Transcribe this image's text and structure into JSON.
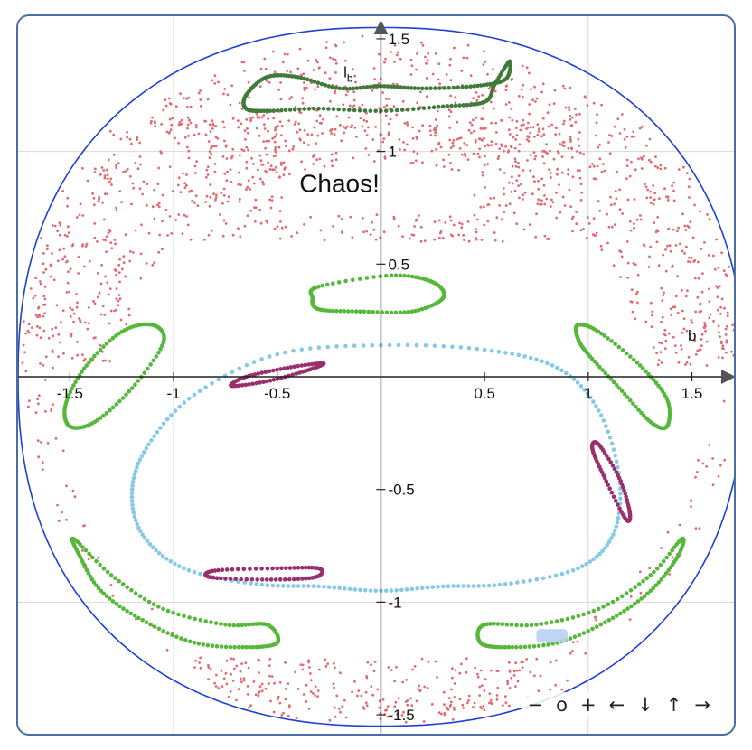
{
  "chart_data": {
    "type": "scatter",
    "title": "",
    "xlabel": "b",
    "ylabel": "l_b",
    "xlim": [
      -1.75,
      1.72
    ],
    "ylim": [
      -1.6,
      1.6
    ],
    "x_ticks": [
      {
        "value": -1.5,
        "label": "-1.5"
      },
      {
        "value": -1,
        "label": "-1"
      },
      {
        "value": -0.5,
        "label": "-0.5"
      },
      {
        "value": 0.5,
        "label": "0.5"
      },
      {
        "value": 1,
        "label": "1"
      },
      {
        "value": 1.5,
        "label": "1.5"
      }
    ],
    "y_ticks": [
      {
        "value": -1.5,
        "label": "-1.5"
      },
      {
        "value": -1,
        "label": "-1"
      },
      {
        "value": -0.5,
        "label": "-0.5"
      },
      {
        "value": 0.5,
        "label": "0.5"
      },
      {
        "value": 1,
        "label": "1"
      },
      {
        "value": 1.5,
        "label": "1.5"
      }
    ],
    "grid_lines_x": [
      -1,
      1
    ],
    "grid_lines_y": [
      -1,
      1
    ],
    "annotation": {
      "text": "Chaos!",
      "x": -0.2,
      "y": 0.82
    },
    "axis_label_x": {
      "text": "b",
      "x": 1.48,
      "y": 0.16
    },
    "axis_label_y": {
      "text": "l",
      "sub": "b",
      "x": -0.18,
      "y": 1.33
    },
    "boundary": {
      "color": "#1f3fd6",
      "a": 1.75,
      "b": 1.55,
      "power": 2.3
    },
    "series": [
      {
        "kind": "ring",
        "color": "#3f7a3a",
        "points": [
          [
            -0.65,
            1.25
          ],
          [
            -0.55,
            1.33
          ],
          [
            -0.4,
            1.33
          ],
          [
            -0.2,
            1.28
          ],
          [
            0,
            1.29
          ],
          [
            0.2,
            1.28
          ],
          [
            0.45,
            1.29
          ],
          [
            0.6,
            1.32
          ],
          [
            0.62,
            1.4
          ],
          [
            0.55,
            1.3
          ],
          [
            0.5,
            1.22
          ],
          [
            0.3,
            1.2
          ],
          [
            0,
            1.18
          ],
          [
            -0.3,
            1.19
          ],
          [
            -0.55,
            1.18
          ],
          [
            -0.65,
            1.19
          ]
        ]
      },
      {
        "kind": "ring",
        "color": "#55b83a",
        "points": [
          [
            -0.3,
            0.4
          ],
          [
            0.05,
            0.45
          ],
          [
            0.25,
            0.42
          ],
          [
            0.3,
            0.35
          ],
          [
            0.15,
            0.29
          ],
          [
            -0.1,
            0.29
          ],
          [
            -0.3,
            0.3
          ],
          [
            -0.33,
            0.35
          ]
        ]
      },
      {
        "kind": "ring",
        "color": "#55b83a",
        "points": [
          [
            -1.25,
            0.2
          ],
          [
            -1.1,
            0.23
          ],
          [
            -1.05,
            0.15
          ],
          [
            -1.2,
            -0.05
          ],
          [
            -1.38,
            -0.2
          ],
          [
            -1.5,
            -0.22
          ],
          [
            -1.52,
            -0.12
          ],
          [
            -1.42,
            0.05
          ]
        ]
      },
      {
        "kind": "ring",
        "color": "#55b83a",
        "points": [
          [
            0.95,
            0.23
          ],
          [
            1.05,
            0.2
          ],
          [
            1.25,
            0.05
          ],
          [
            1.38,
            -0.1
          ],
          [
            1.38,
            -0.22
          ],
          [
            1.3,
            -0.2
          ],
          [
            1.15,
            -0.05
          ],
          [
            1.0,
            0.1
          ],
          [
            0.95,
            0.17
          ]
        ]
      },
      {
        "kind": "ring",
        "color": "#55b83a",
        "points": [
          [
            -1.48,
            -0.72
          ],
          [
            -1.3,
            -0.88
          ],
          [
            -1.05,
            -1.03
          ],
          [
            -0.75,
            -1.1
          ],
          [
            -0.55,
            -1.1
          ],
          [
            -0.5,
            -1.18
          ],
          [
            -0.65,
            -1.2
          ],
          [
            -0.9,
            -1.18
          ],
          [
            -1.15,
            -1.08
          ],
          [
            -1.35,
            -0.95
          ],
          [
            -1.45,
            -0.8
          ]
        ]
      },
      {
        "kind": "ring",
        "color": "#55b83a",
        "points": [
          [
            1.45,
            -0.72
          ],
          [
            1.3,
            -0.88
          ],
          [
            1.05,
            -1.03
          ],
          [
            0.75,
            -1.1
          ],
          [
            0.5,
            -1.1
          ],
          [
            0.48,
            -1.18
          ],
          [
            0.6,
            -1.2
          ],
          [
            0.85,
            -1.18
          ],
          [
            1.1,
            -1.08
          ],
          [
            1.3,
            -0.95
          ],
          [
            1.43,
            -0.8
          ]
        ]
      },
      {
        "kind": "ring",
        "color": "#86c9e6",
        "points": [
          [
            0,
            0.14
          ],
          [
            0.5,
            0.12
          ],
          [
            0.85,
            0.04
          ],
          [
            1.05,
            -0.15
          ],
          [
            1.15,
            -0.45
          ],
          [
            1.12,
            -0.7
          ],
          [
            0.95,
            -0.85
          ],
          [
            0.6,
            -0.92
          ],
          [
            0.3,
            -0.93
          ],
          [
            0,
            -0.95
          ],
          [
            -0.3,
            -0.93
          ],
          [
            -0.6,
            -0.92
          ],
          [
            -0.95,
            -0.85
          ],
          [
            -1.15,
            -0.7
          ],
          [
            -1.2,
            -0.5
          ],
          [
            -1.12,
            -0.3
          ],
          [
            -0.9,
            -0.08
          ],
          [
            -0.5,
            0.1
          ]
        ]
      },
      {
        "kind": "ring",
        "color": "#9a2f6d",
        "points": [
          [
            -0.65,
            0.0
          ],
          [
            -0.45,
            0.04
          ],
          [
            -0.28,
            0.06
          ],
          [
            -0.35,
            0.03
          ],
          [
            -0.55,
            -0.02
          ],
          [
            -0.72,
            -0.04
          ]
        ]
      },
      {
        "kind": "ring",
        "color": "#9a2f6d",
        "points": [
          [
            1.05,
            -0.3
          ],
          [
            1.15,
            -0.45
          ],
          [
            1.2,
            -0.6
          ],
          [
            1.18,
            -0.63
          ],
          [
            1.08,
            -0.45
          ],
          [
            1.02,
            -0.32
          ]
        ]
      },
      {
        "kind": "ring",
        "color": "#9a2f6d",
        "points": [
          [
            -0.8,
            -0.86
          ],
          [
            -0.5,
            -0.85
          ],
          [
            -0.3,
            -0.85
          ],
          [
            -0.32,
            -0.89
          ],
          [
            -0.55,
            -0.9
          ],
          [
            -0.82,
            -0.89
          ]
        ]
      }
    ],
    "chaos_band": {
      "color": "#e06c72",
      "count": 1900
    },
    "highlight": {
      "color": "#b9cff5",
      "x": [
        0.75,
        0.9
      ],
      "y": [
        -1.18,
        -1.12
      ]
    }
  },
  "controls": {
    "zoom_out": "−",
    "reset": "o",
    "zoom_in": "+",
    "pan_left": "←",
    "pan_down": "↓",
    "pan_up": "↑",
    "pan_right": "→"
  }
}
